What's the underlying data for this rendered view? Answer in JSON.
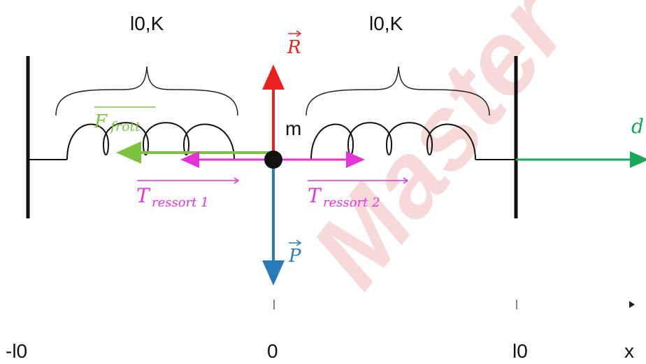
{
  "labels": {
    "spring_left_params": "l0,K",
    "spring_right_params": "l0,K",
    "mass": "m",
    "reaction": "R",
    "weight": "P",
    "friction_main": "F",
    "friction_sub": "frott",
    "tension1_main": "T",
    "tension1_sub": "ressort 1",
    "tension2_main": "T",
    "tension2_sub": "ressort 2",
    "displacement": "d",
    "axis_left": "-l0",
    "axis_origin": "0",
    "axis_right": "l0",
    "axis_name": "x",
    "watermark": "Master"
  },
  "colors": {
    "reaction": "#e8231f",
    "weight": "#2a7ab8",
    "friction": "#7cc341",
    "tension": "#e632d6",
    "displacement": "#1aa65b",
    "structure": "#111111",
    "watermark": "#f7d9d9"
  }
}
